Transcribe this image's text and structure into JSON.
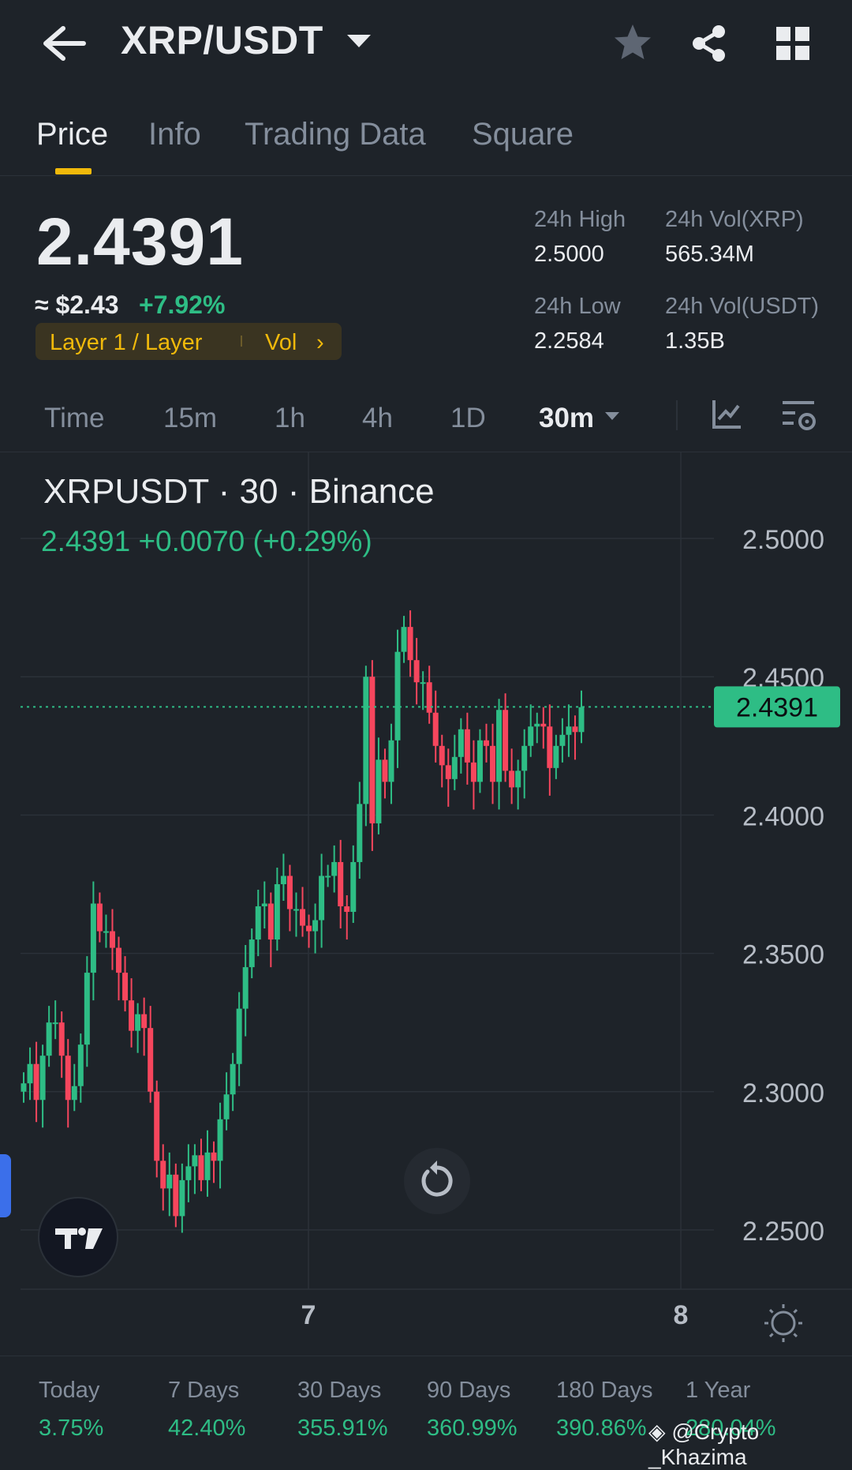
{
  "header": {
    "pair": "XRP/USDT",
    "icons": [
      "back-arrow-icon",
      "dropdown-caret-icon",
      "star-icon",
      "share-icon",
      "grid-icon"
    ]
  },
  "tabs": [
    {
      "label": "Price",
      "active": true
    },
    {
      "label": "Info",
      "active": false
    },
    {
      "label": "Trading Data",
      "active": false
    },
    {
      "label": "Square",
      "active": false
    }
  ],
  "price": {
    "last": "2.4391",
    "fiat": "≈ $2.43",
    "change": "+7.92%",
    "tag": "Layer 1 / Layer",
    "tag2": "Vol",
    "tag_chevron": "›"
  },
  "stats": {
    "high_label": "24h High",
    "high": "2.5000",
    "low_label": "24h Low",
    "low": "2.2584",
    "vol_xrp_label": "24h Vol(XRP)",
    "vol_xrp": "565.34M",
    "vol_usdt_label": "24h Vol(USDT)",
    "vol_usdt": "1.35B"
  },
  "intervals": [
    {
      "label": "Time",
      "active": false
    },
    {
      "label": "15m",
      "active": false
    },
    {
      "label": "1h",
      "active": false
    },
    {
      "label": "4h",
      "active": false
    },
    {
      "label": "1D",
      "active": false
    },
    {
      "label": "30m",
      "active": true
    }
  ],
  "chart": {
    "title": "XRPUSDT · 30 · Binance",
    "legend": "2.4391  +0.0070 (+0.29%)",
    "price_tag": "2.4391",
    "day_labels": [
      "7",
      "8"
    ],
    "colors": {
      "up": "#2ebd85",
      "down": "#f6465d",
      "grid": "#2b3139",
      "axis_text": "#b7bdc6"
    }
  },
  "chart_data": {
    "type": "candlestick",
    "title": "XRPUSDT · 30 · Binance",
    "y_ticks": [
      "2.5000",
      "2.4500",
      "2.4000",
      "2.3500",
      "2.3000",
      "2.2500"
    ],
    "ylim": [
      2.232,
      2.506
    ],
    "x_ticks": [
      "7",
      "8"
    ],
    "last_price": 2.4391,
    "close": [
      2.303,
      2.31,
      2.297,
      2.313,
      2.325,
      2.325,
      2.313,
      2.297,
      2.302,
      2.317,
      2.343,
      2.368,
      2.358,
      2.358,
      2.352,
      2.343,
      2.333,
      2.322,
      2.328,
      2.323,
      2.3,
      2.275,
      2.265,
      2.27,
      2.255,
      2.268,
      2.273,
      2.277,
      2.268,
      2.278,
      2.275,
      2.29,
      2.299,
      2.31,
      2.33,
      2.345,
      2.355,
      2.367,
      2.368,
      2.355,
      2.375,
      2.378,
      2.366,
      2.366,
      2.36,
      2.358,
      2.362,
      2.378,
      2.378,
      2.383,
      2.367,
      2.365,
      2.383,
      2.404,
      2.45,
      2.397,
      2.42,
      2.412,
      2.427,
      2.459,
      2.468,
      2.456,
      2.448,
      2.448,
      2.437,
      2.425,
      2.418,
      2.413,
      2.421,
      2.431,
      2.419,
      2.412,
      2.427,
      2.425,
      2.412,
      2.438,
      2.416,
      2.41,
      2.416,
      2.425,
      2.432,
      2.433,
      2.432,
      2.417,
      2.425,
      2.429,
      2.432,
      2.43,
      2.439
    ]
  },
  "returns": [
    {
      "label": "Today",
      "value": "3.75%"
    },
    {
      "label": "7 Days",
      "value": "42.40%"
    },
    {
      "label": "30 Days",
      "value": "355.91%"
    },
    {
      "label": "90 Days",
      "value": "360.99%"
    },
    {
      "label": "180 Days",
      "value": "390.86%"
    },
    {
      "label": "1 Year",
      "value": "280.04%"
    }
  ],
  "watermark": "@Crypto _Khazima"
}
